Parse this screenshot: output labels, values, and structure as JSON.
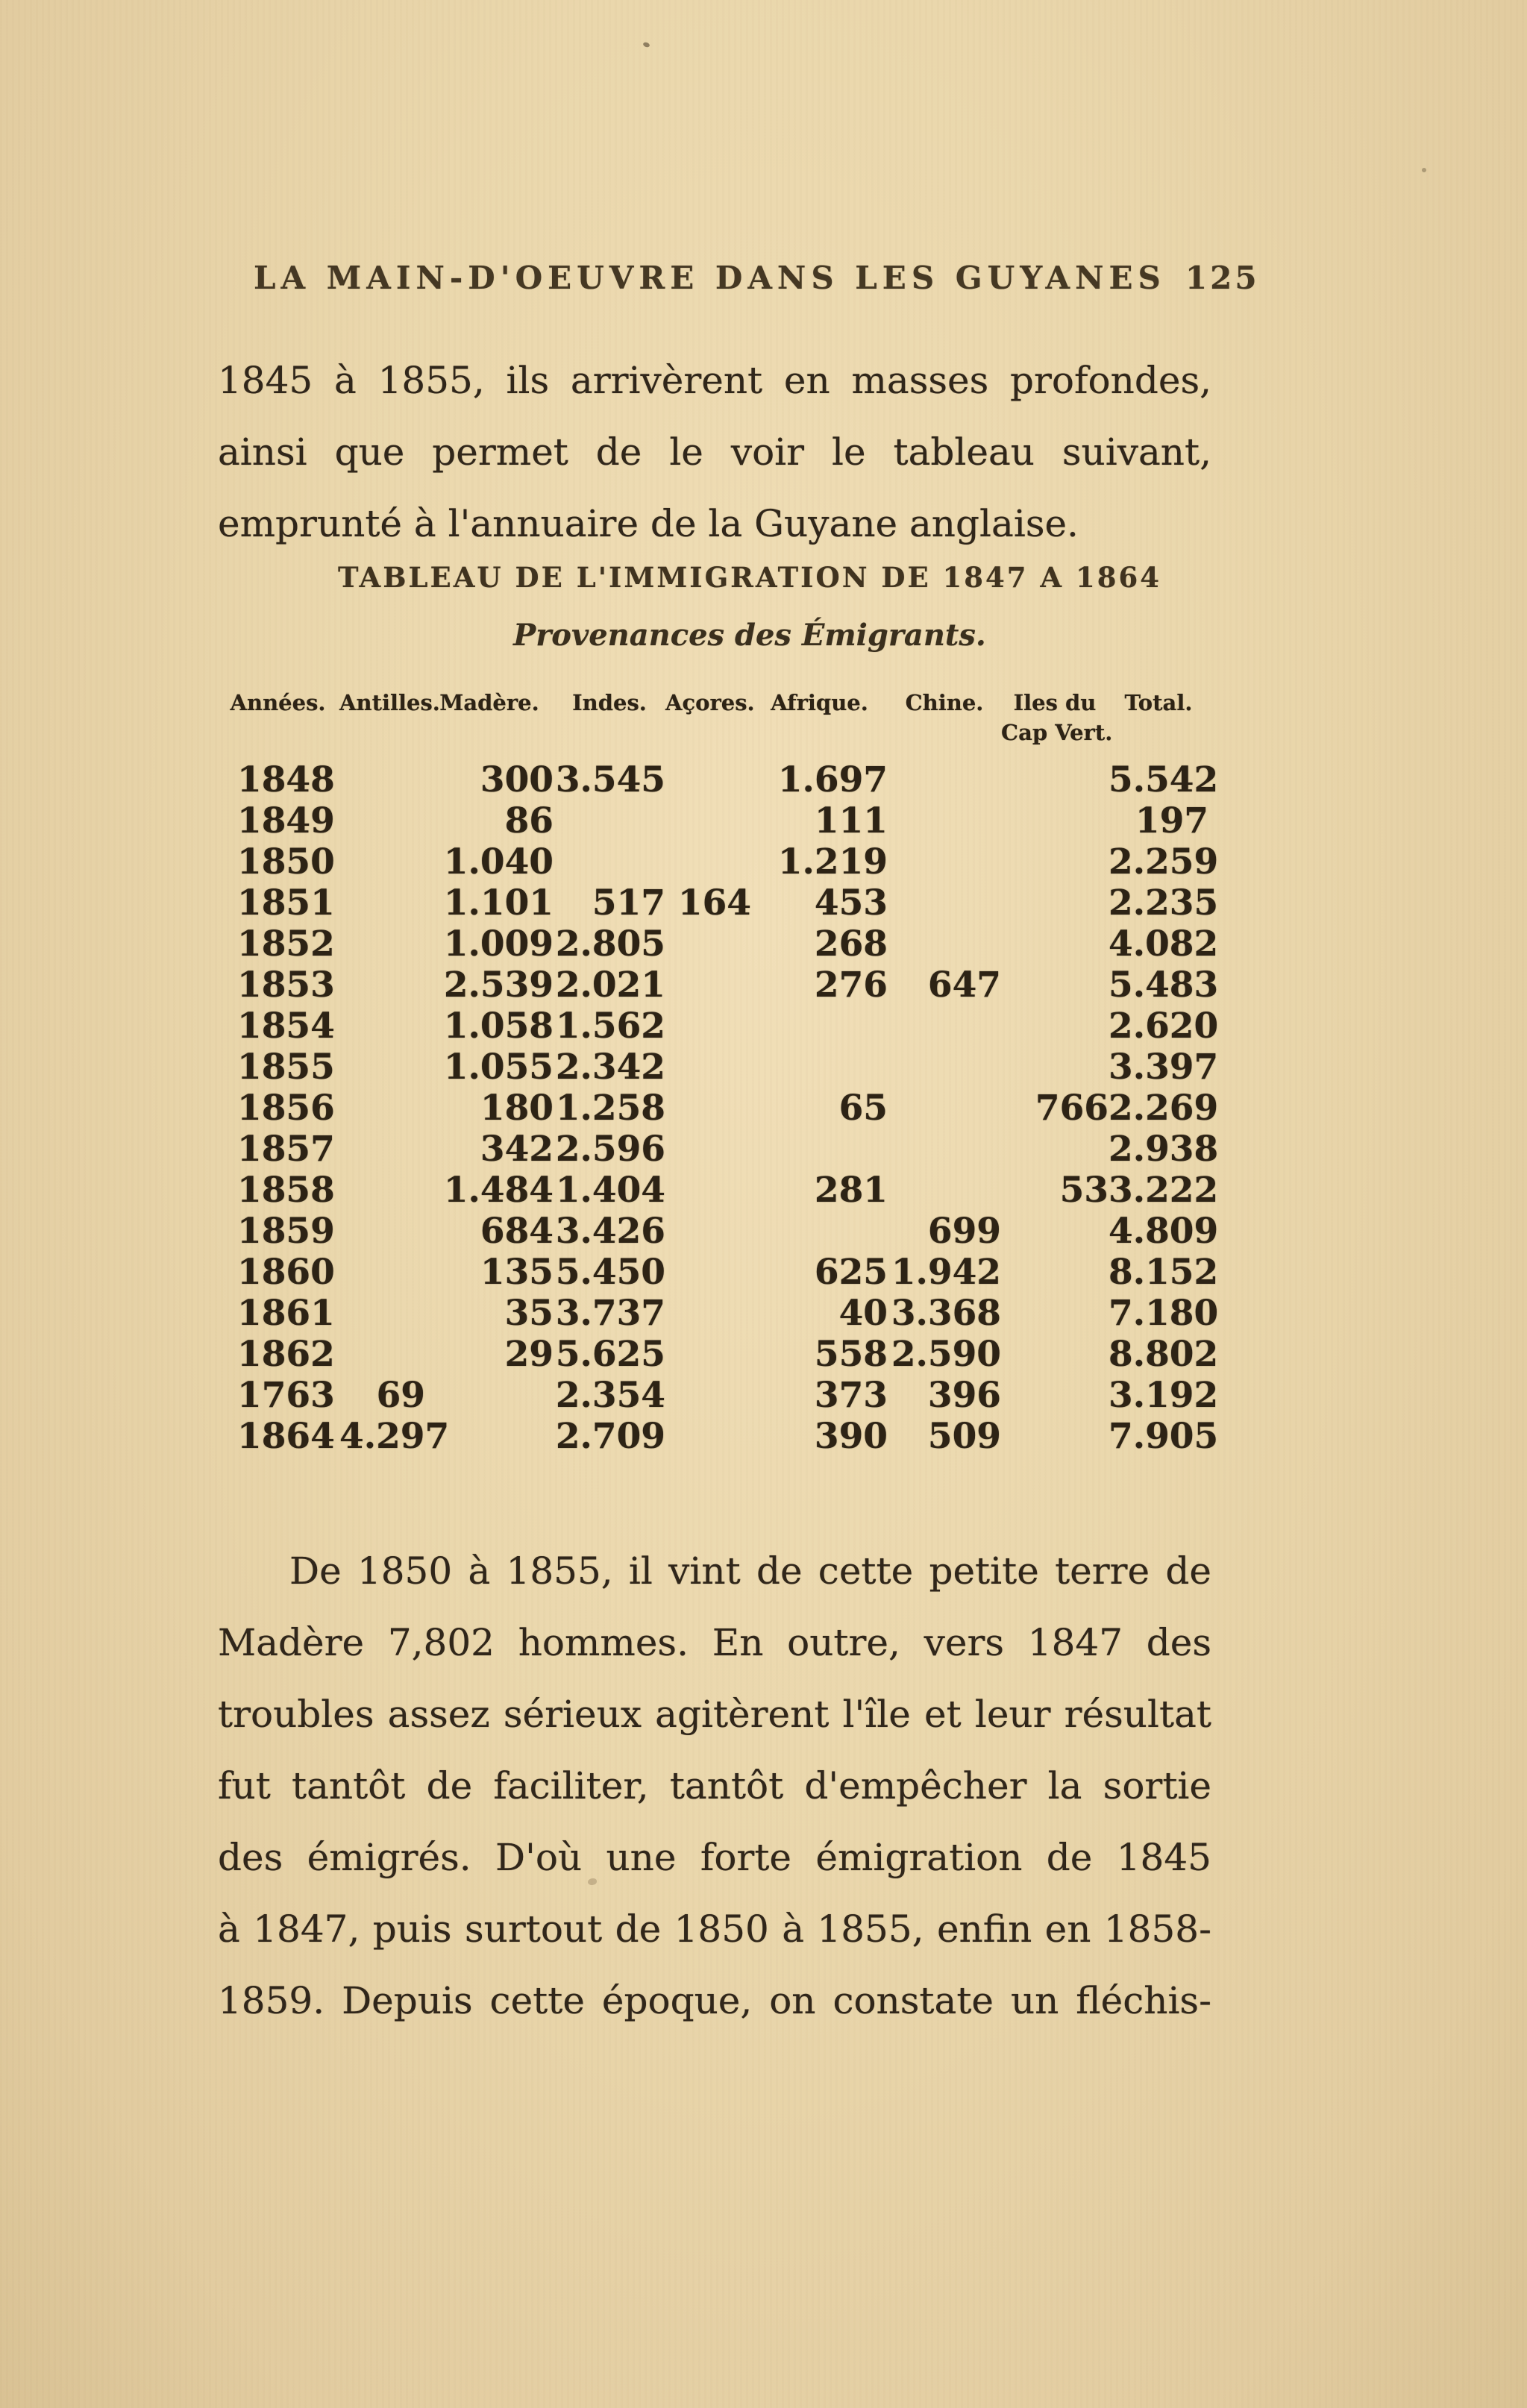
{
  "header": {
    "title": "LA MAIN-D'OEUVRE DANS LES GUYANES",
    "page_number": "125"
  },
  "intro_paragraph": {
    "lines": [
      "1845 à 1855, ils arrivèrent en masses profondes,",
      "ainsi que permet de le voir le tableau suivant,",
      "emprunté à l'annuaire de la Guyane anglaise."
    ]
  },
  "table": {
    "title": "TABLEAU DE L'IMMIGRATION DE 1847 A 1864",
    "subtitle": "Provenances des Émigrants.",
    "columns": [
      {
        "line1": "Années.",
        "line2": ""
      },
      {
        "line1": "Antilles.",
        "line2": ""
      },
      {
        "line1": "Madère.",
        "line2": ""
      },
      {
        "line1": "Indes.",
        "line2": ""
      },
      {
        "line1": "Açores.",
        "line2": ""
      },
      {
        "line1": "Afrique.",
        "line2": ""
      },
      {
        "line1": "Chine.",
        "line2": ""
      },
      {
        "line1": "Iles du",
        "line2": "Cap Vert."
      },
      {
        "line1": "Total.",
        "line2": ""
      }
    ],
    "rows": [
      [
        "1848",
        "",
        "300",
        "3.545",
        "",
        "1.697",
        "",
        "",
        "5.542"
      ],
      [
        "1849",
        "",
        "86",
        "",
        "",
        "111",
        "",
        "",
        "197"
      ],
      [
        "1850",
        "",
        "1.040",
        "",
        "",
        "1.219",
        "",
        "",
        "2.259"
      ],
      [
        "1851",
        "",
        "1.101",
        "517",
        "164",
        "453",
        "",
        "",
        "2.235"
      ],
      [
        "1852",
        "",
        "1.009",
        "2.805",
        "",
        "268",
        "",
        "",
        "4.082"
      ],
      [
        "1853",
        "",
        "2.539",
        "2.021",
        "",
        "276",
        "647",
        "",
        "5.483"
      ],
      [
        "1854",
        "",
        "1.058",
        "1.562",
        "",
        "",
        "",
        "",
        "2.620"
      ],
      [
        "1855",
        "",
        "1.055",
        "2.342",
        "",
        "",
        "",
        "",
        "3.397"
      ],
      [
        "1856",
        "",
        "180",
        "1.258",
        "",
        "65",
        "",
        "766",
        "2.269"
      ],
      [
        "1857",
        "",
        "342",
        "2.596",
        "",
        "",
        "",
        "",
        "2.938"
      ],
      [
        "1858",
        "",
        "1.484",
        "1.404",
        "",
        "281",
        "",
        "53",
        "3.222"
      ],
      [
        "1859",
        "",
        "684",
        "3.426",
        "",
        "",
        "699",
        "",
        "4.809"
      ],
      [
        "1860",
        "",
        "135",
        "5.450",
        "",
        "625",
        "1.942",
        "",
        "8.152"
      ],
      [
        "1861",
        "",
        "35",
        "3.737",
        "",
        "40",
        "3.368",
        "",
        "7.180"
      ],
      [
        "1862",
        "",
        "29",
        "5.625",
        "",
        "558",
        "2.590",
        "",
        "8.802"
      ],
      [
        "1763",
        "69",
        "",
        "2.354",
        "",
        "373",
        "396",
        "",
        "3.192"
      ],
      [
        "1864",
        "4.297",
        "",
        "2.709",
        "",
        "390",
        "509",
        "",
        "7.905"
      ]
    ]
  },
  "closing_paragraph": {
    "lines": [
      "De 1850 à 1855, il vint de cette petite terre de",
      "Madère 7,802 hommes. En outre, vers 1847 des",
      "troubles assez sérieux agitèrent l'île et leur résultat",
      "fut tantôt de faciliter, tantôt d'empêcher la sortie",
      "des émigrés. D'où une forte émigration de 1845",
      "à 1847, puis surtout de 1850 à 1855, enfin en 1858-",
      "1859. Depuis cette époque, on constate un fléchis-"
    ]
  }
}
